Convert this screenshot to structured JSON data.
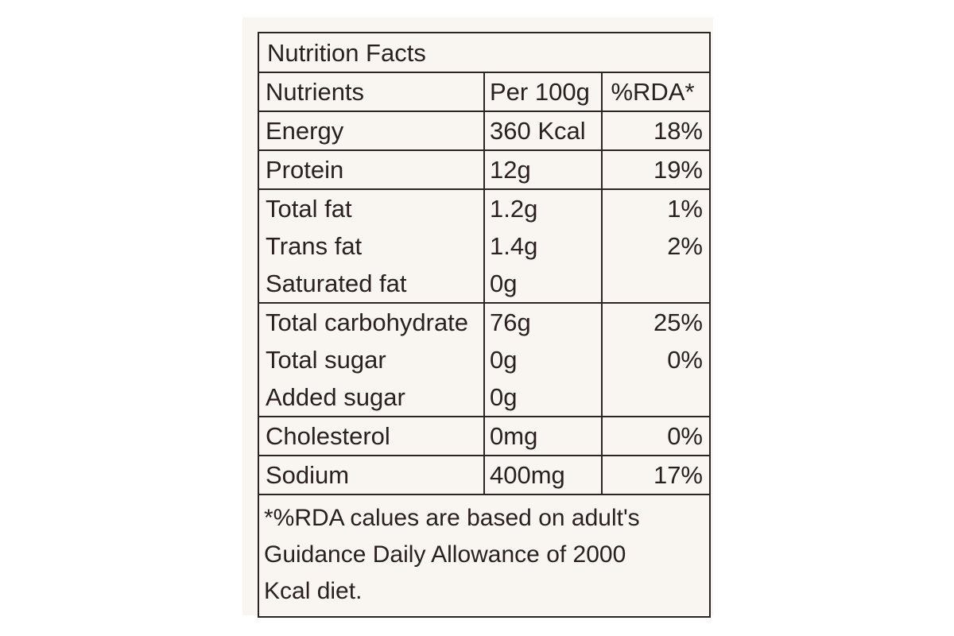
{
  "label": {
    "title": "Nutrition Facts",
    "headers": {
      "nutrient": "Nutrients",
      "amount": "Per 100g",
      "rda": "%RDA*"
    },
    "rows": [
      {
        "nutrient": "Energy",
        "amount": "360 Kcal",
        "rda": "18%"
      },
      {
        "nutrient": "Protein",
        "amount": "12g",
        "rda": "19%"
      },
      {
        "nutrient": "Total fat",
        "amount": "1.2g",
        "rda": "1%"
      },
      {
        "nutrient": "Trans fat",
        "amount": "1.4g",
        "rda": "2%"
      },
      {
        "nutrient": "Saturated fat",
        "amount": "0g",
        "rda": ""
      },
      {
        "nutrient": "Total carbohydrate",
        "amount": "76g",
        "rda": "25%"
      },
      {
        "nutrient": "Total sugar",
        "amount": "0g",
        "rda": "0%"
      },
      {
        "nutrient": "Added sugar",
        "amount": "0g",
        "rda": ""
      },
      {
        "nutrient": "Cholesterol",
        "amount": "0mg",
        "rda": "0%"
      },
      {
        "nutrient": "Sodium",
        "amount": "400mg",
        "rda": "17%"
      }
    ],
    "footnote": {
      "line1": "*%RDA calues are based on adult's",
      "line2": "Guidance Daily Allowance of 2000",
      "line3": "Kcal diet."
    }
  }
}
